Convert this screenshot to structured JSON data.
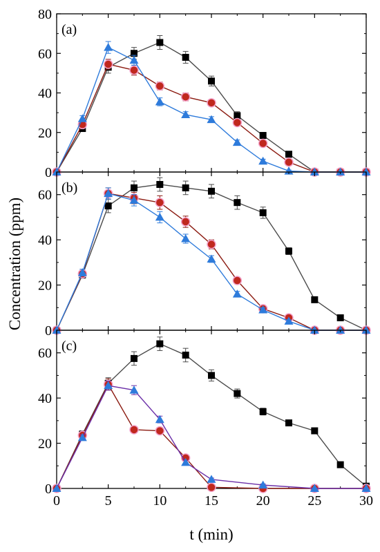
{
  "figure": {
    "ylabel": "Concentration (ppm)",
    "xlabel": "t (min)"
  },
  "chart_data": [
    {
      "type": "line",
      "panel_label": "(a)",
      "xlim": [
        0,
        30
      ],
      "ylim": [
        0,
        80
      ],
      "xticks": [
        0,
        5,
        10,
        15,
        20,
        25,
        30
      ],
      "yticks": [
        0,
        20,
        40,
        60,
        80
      ],
      "x": [
        0,
        2.5,
        5,
        7.5,
        10,
        12.5,
        15,
        17.5,
        20,
        22.5,
        25,
        27.5,
        30
      ],
      "series": [
        {
          "marker": "square",
          "color": "#000000",
          "line_color": "#4a4a4a",
          "values": [
            0,
            22,
            53,
            60,
            65.5,
            58,
            46,
            28.5,
            18.5,
            9,
            0,
            0,
            0
          ],
          "errors": [
            0,
            1.5,
            3,
            3,
            3.5,
            3,
            2.5,
            2,
            1.5,
            1.2,
            0,
            0,
            0
          ]
        },
        {
          "marker": "circle",
          "color": "#c0281e",
          "line_color": "#8b1a10",
          "values": [
            0,
            24,
            54.5,
            51.5,
            43.5,
            38,
            35,
            25,
            14.5,
            5,
            0,
            0,
            0
          ],
          "errors": [
            0,
            1.5,
            2.5,
            2.5,
            2,
            2,
            1.5,
            1.5,
            1.5,
            1,
            0,
            0,
            0
          ]
        },
        {
          "marker": "triangle",
          "color": "#2e7bdb",
          "line_color": "#2e7bdb",
          "values": [
            0,
            27,
            63,
            56.5,
            35.5,
            29,
            26.5,
            15,
            5.5,
            0.5,
            0,
            0,
            0
          ],
          "errors": [
            0,
            1.5,
            3,
            2.5,
            2,
            1.5,
            1.5,
            1.2,
            1,
            0.5,
            0,
            0,
            0
          ]
        }
      ]
    },
    {
      "type": "line",
      "panel_label": "(b)",
      "xlim": [
        0,
        30
      ],
      "ylim": [
        0,
        70
      ],
      "xticks": [
        0,
        5,
        10,
        15,
        20,
        25,
        30
      ],
      "yticks": [
        0,
        20,
        40,
        60
      ],
      "x": [
        0,
        2.5,
        5,
        7.5,
        10,
        12.5,
        15,
        17.5,
        20,
        22.5,
        25,
        27.5,
        30
      ],
      "series": [
        {
          "marker": "square",
          "color": "#000000",
          "line_color": "#4a4a4a",
          "values": [
            0,
            24.5,
            55,
            63,
            64.5,
            63,
            61.5,
            56.5,
            52,
            35,
            13.5,
            5.5,
            0
          ],
          "errors": [
            0,
            1.5,
            3,
            3,
            3,
            3,
            3,
            3,
            2.5,
            1.5,
            1,
            0.8,
            0
          ]
        },
        {
          "marker": "circle",
          "color": "#c0281e",
          "line_color": "#8b1a10",
          "values": [
            0,
            25,
            60.5,
            58.5,
            56.5,
            48,
            38,
            22,
            9.5,
            5.5,
            0,
            0,
            0
          ],
          "errors": [
            0,
            1.5,
            2.5,
            2.5,
            3,
            2.5,
            2,
            1.5,
            1,
            0.8,
            0,
            0,
            0
          ]
        },
        {
          "marker": "triangle",
          "color": "#2e7bdb",
          "line_color": "#2e7bdb",
          "values": [
            0,
            25.5,
            60.5,
            57.5,
            50,
            40.5,
            31.5,
            16,
            9,
            4,
            0,
            0,
            0
          ],
          "errors": [
            0,
            1.5,
            2.5,
            2.5,
            2.5,
            2,
            1.5,
            1.2,
            1,
            0.6,
            0,
            0,
            0
          ]
        }
      ]
    },
    {
      "type": "line",
      "panel_label": "(c)",
      "xlim": [
        0,
        30
      ],
      "ylim": [
        0,
        70
      ],
      "xticks": [
        0,
        5,
        10,
        15,
        20,
        25,
        30
      ],
      "yticks": [
        0,
        20,
        40,
        60
      ],
      "x": [
        0,
        2.5,
        5,
        7.5,
        10,
        12.5,
        15,
        17.5,
        20,
        22.5,
        25,
        27.5,
        30
      ],
      "series": [
        {
          "marker": "square",
          "color": "#000000",
          "line_color": "#4a4a4a",
          "values": [
            0,
            24,
            46.5,
            57.5,
            64,
            59,
            50,
            42,
            34,
            29,
            25.5,
            10.5,
            1
          ],
          "errors": [
            0,
            1.5,
            2.5,
            3,
            3,
            3,
            2.5,
            2,
            1.5,
            1.2,
            1,
            0.8,
            0.5
          ]
        },
        {
          "marker": "circle",
          "color": "#c0281e",
          "line_color": "#8b1a10",
          "x": [
            0,
            2.5,
            5,
            7.5,
            10,
            12.5,
            15,
            20,
            25,
            30
          ],
          "values": [
            0,
            23.5,
            46,
            26,
            25.5,
            13.5,
            0.5,
            0,
            0,
            0
          ],
          "errors": [
            0,
            1.2,
            2.5,
            1.5,
            1.5,
            1,
            0.5,
            0,
            0,
            0
          ]
        },
        {
          "marker": "triangle",
          "color": "#2e7bdb",
          "line_color": "#6b2fa8",
          "x": [
            0,
            2.5,
            5,
            7.5,
            10,
            12.5,
            15,
            20,
            25,
            30
          ],
          "values": [
            0,
            22.5,
            45.5,
            43.5,
            30.5,
            11.5,
            4,
            1.5,
            0,
            0
          ],
          "errors": [
            0,
            1.2,
            2,
            2,
            1.5,
            1,
            0.6,
            0.5,
            0,
            0
          ]
        }
      ]
    }
  ]
}
